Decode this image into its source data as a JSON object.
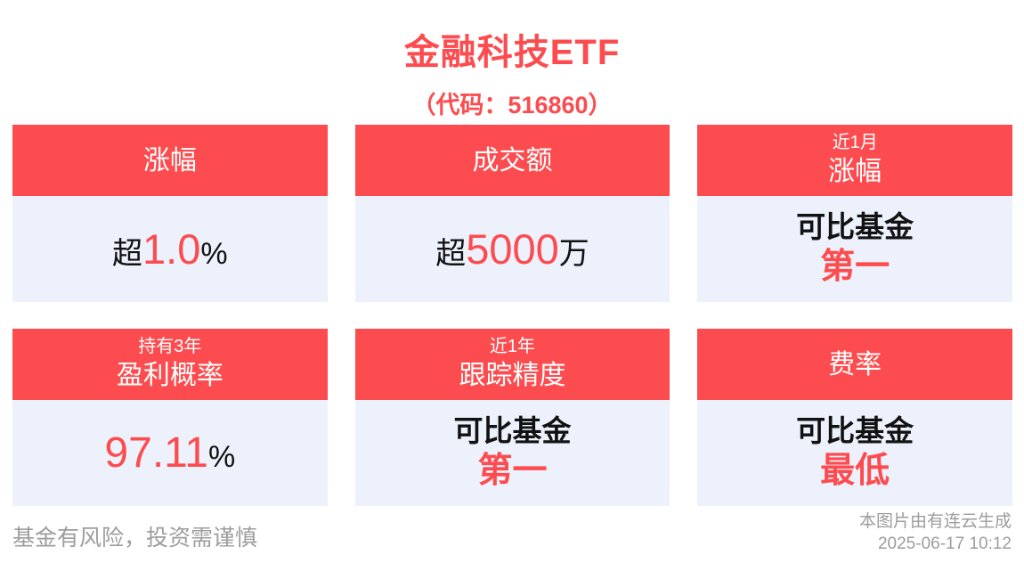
{
  "title": "金融科技ETF",
  "subtitle": "（代码：516860）",
  "colors": {
    "accent": "#FC4C4F",
    "card_bg": "#ECF1FC",
    "dark": "#121212",
    "muted": "#9D9D9D"
  },
  "cards": [
    {
      "header": {
        "small": "",
        "main": "涨幅"
      },
      "value": {
        "prefix": "超",
        "highlight": "1.0",
        "suffix": "%"
      }
    },
    {
      "header": {
        "small": "",
        "main": "成交额"
      },
      "value": {
        "prefix": "超",
        "highlight": "5000",
        "suffix": "万"
      }
    },
    {
      "header": {
        "small": "近1月",
        "main": "涨幅"
      },
      "value": {
        "top": "可比基金",
        "bottom": "第一"
      }
    },
    {
      "header": {
        "small": "持有3年",
        "main": "盈利概率"
      },
      "value": {
        "prefix": "",
        "highlight": "97.11",
        "suffix": "%"
      }
    },
    {
      "header": {
        "small": "近1年",
        "main": "跟踪精度"
      },
      "value": {
        "top": "可比基金",
        "bottom": "第一"
      }
    },
    {
      "header": {
        "small": "",
        "main": "费率"
      },
      "value": {
        "top": "可比基金",
        "bottom": "最低"
      }
    }
  ],
  "footer": {
    "disclaimer": "基金有风险，投资需谨慎",
    "credit_line1": "本图片由有连云生成",
    "credit_line2": "2025-06-17 10:12"
  }
}
